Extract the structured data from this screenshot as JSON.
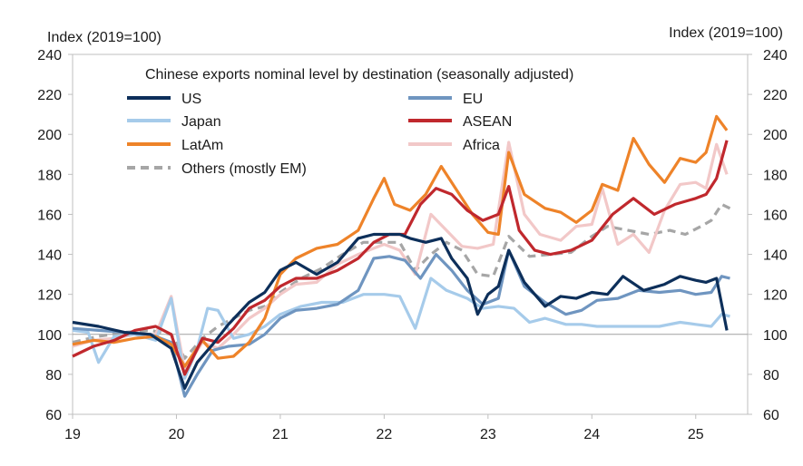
{
  "chart_data": {
    "type": "line",
    "title": "Chinese exports nominal level by destination (seasonally adjusted)",
    "ylabel_left": "Index (2019=100)",
    "ylabel_right": "Index (2019=100)",
    "ylim": [
      60,
      240
    ],
    "yticks": [
      60,
      80,
      100,
      120,
      140,
      160,
      180,
      200,
      220,
      240
    ],
    "xlim": [
      2019,
      2025.5
    ],
    "xticks": [
      {
        "value": 2019,
        "label": "19"
      },
      {
        "value": 2020,
        "label": "20"
      },
      {
        "value": 2021,
        "label": "21"
      },
      {
        "value": 2022,
        "label": "22"
      },
      {
        "value": 2023,
        "label": "23"
      },
      {
        "value": 2024,
        "label": "24"
      },
      {
        "value": 2025,
        "label": "25"
      }
    ],
    "reference_line": 100,
    "series": [
      {
        "name": "US",
        "color": "#0d2f5a",
        "dashed": false,
        "points": [
          [
            2019.0,
            106
          ],
          [
            2019.25,
            104
          ],
          [
            2019.5,
            101
          ],
          [
            2019.75,
            100
          ],
          [
            2019.95,
            93
          ],
          [
            2020.08,
            73
          ],
          [
            2020.2,
            86
          ],
          [
            2020.35,
            95
          ],
          [
            2020.5,
            105
          ],
          [
            2020.7,
            116
          ],
          [
            2020.85,
            121
          ],
          [
            2021.0,
            132
          ],
          [
            2021.15,
            136
          ],
          [
            2021.35,
            130
          ],
          [
            2021.55,
            136
          ],
          [
            2021.75,
            148
          ],
          [
            2021.9,
            150
          ],
          [
            2022.0,
            150
          ],
          [
            2022.15,
            150
          ],
          [
            2022.25,
            148
          ],
          [
            2022.4,
            146
          ],
          [
            2022.55,
            148
          ],
          [
            2022.65,
            138
          ],
          [
            2022.8,
            128
          ],
          [
            2022.9,
            110
          ],
          [
            2023.0,
            120
          ],
          [
            2023.1,
            124
          ],
          [
            2023.2,
            142
          ],
          [
            2023.35,
            126
          ],
          [
            2023.55,
            114
          ],
          [
            2023.7,
            119
          ],
          [
            2023.85,
            118
          ],
          [
            2024.0,
            121
          ],
          [
            2024.15,
            120
          ],
          [
            2024.3,
            129
          ],
          [
            2024.5,
            122
          ],
          [
            2024.7,
            125
          ],
          [
            2024.85,
            129
          ],
          [
            2025.0,
            127
          ],
          [
            2025.1,
            126
          ],
          [
            2025.2,
            128
          ],
          [
            2025.3,
            102
          ]
        ]
      },
      {
        "name": "EU",
        "color": "#6f95c0",
        "dashed": false,
        "points": [
          [
            2019.0,
            103
          ],
          [
            2019.25,
            102
          ],
          [
            2019.5,
            101
          ],
          [
            2019.75,
            100
          ],
          [
            2019.95,
            96
          ],
          [
            2020.08,
            69
          ],
          [
            2020.2,
            80
          ],
          [
            2020.35,
            92
          ],
          [
            2020.5,
            94
          ],
          [
            2020.7,
            95
          ],
          [
            2020.85,
            100
          ],
          [
            2021.0,
            108
          ],
          [
            2021.15,
            112
          ],
          [
            2021.35,
            113
          ],
          [
            2021.55,
            115
          ],
          [
            2021.75,
            122
          ],
          [
            2021.9,
            138
          ],
          [
            2022.05,
            139
          ],
          [
            2022.2,
            137
          ],
          [
            2022.35,
            128
          ],
          [
            2022.5,
            140
          ],
          [
            2022.65,
            132
          ],
          [
            2022.8,
            122
          ],
          [
            2022.95,
            115
          ],
          [
            2023.1,
            118
          ],
          [
            2023.2,
            142
          ],
          [
            2023.35,
            124
          ],
          [
            2023.55,
            116
          ],
          [
            2023.75,
            110
          ],
          [
            2023.9,
            112
          ],
          [
            2024.05,
            117
          ],
          [
            2024.25,
            118
          ],
          [
            2024.45,
            122
          ],
          [
            2024.65,
            121
          ],
          [
            2024.85,
            122
          ],
          [
            2025.0,
            120
          ],
          [
            2025.15,
            121
          ],
          [
            2025.25,
            129
          ],
          [
            2025.33,
            128
          ]
        ]
      },
      {
        "name": "Japan",
        "color": "#a6cbea",
        "dashed": false,
        "points": [
          [
            2019.0,
            102
          ],
          [
            2019.15,
            101
          ],
          [
            2019.25,
            86
          ],
          [
            2019.4,
            99
          ],
          [
            2019.6,
            100
          ],
          [
            2019.8,
            97
          ],
          [
            2019.95,
            118
          ],
          [
            2020.08,
            78
          ],
          [
            2020.2,
            93
          ],
          [
            2020.3,
            113
          ],
          [
            2020.4,
            112
          ],
          [
            2020.55,
            98
          ],
          [
            2020.7,
            100
          ],
          [
            2020.85,
            104
          ],
          [
            2021.0,
            110
          ],
          [
            2021.2,
            114
          ],
          [
            2021.4,
            116
          ],
          [
            2021.6,
            116
          ],
          [
            2021.8,
            120
          ],
          [
            2022.0,
            120
          ],
          [
            2022.15,
            119
          ],
          [
            2022.3,
            103
          ],
          [
            2022.45,
            128
          ],
          [
            2022.6,
            122
          ],
          [
            2022.8,
            118
          ],
          [
            2022.95,
            113
          ],
          [
            2023.1,
            114
          ],
          [
            2023.25,
            113
          ],
          [
            2023.4,
            106
          ],
          [
            2023.55,
            108
          ],
          [
            2023.75,
            105
          ],
          [
            2023.9,
            105
          ],
          [
            2024.05,
            104
          ],
          [
            2024.25,
            104
          ],
          [
            2024.45,
            104
          ],
          [
            2024.65,
            104
          ],
          [
            2024.85,
            106
          ],
          [
            2025.0,
            105
          ],
          [
            2025.15,
            104
          ],
          [
            2025.25,
            110
          ],
          [
            2025.33,
            109
          ]
        ]
      },
      {
        "name": "ASEAN",
        "color": "#c0282d",
        "dashed": false,
        "points": [
          [
            2019.0,
            89
          ],
          [
            2019.2,
            94
          ],
          [
            2019.4,
            97
          ],
          [
            2019.6,
            102
          ],
          [
            2019.8,
            104
          ],
          [
            2019.95,
            100
          ],
          [
            2020.08,
            80
          ],
          [
            2020.25,
            98
          ],
          [
            2020.4,
            96
          ],
          [
            2020.55,
            103
          ],
          [
            2020.7,
            113
          ],
          [
            2020.85,
            117
          ],
          [
            2021.0,
            124
          ],
          [
            2021.15,
            128
          ],
          [
            2021.35,
            128
          ],
          [
            2021.55,
            132
          ],
          [
            2021.75,
            138
          ],
          [
            2021.9,
            146
          ],
          [
            2022.05,
            150
          ],
          [
            2022.2,
            150
          ],
          [
            2022.35,
            165
          ],
          [
            2022.5,
            173
          ],
          [
            2022.65,
            170
          ],
          [
            2022.8,
            162
          ],
          [
            2022.95,
            157
          ],
          [
            2023.1,
            160
          ],
          [
            2023.2,
            174
          ],
          [
            2023.3,
            152
          ],
          [
            2023.45,
            142
          ],
          [
            2023.6,
            140
          ],
          [
            2023.8,
            142
          ],
          [
            2024.0,
            147
          ],
          [
            2024.2,
            160
          ],
          [
            2024.4,
            168
          ],
          [
            2024.6,
            160
          ],
          [
            2024.8,
            165
          ],
          [
            2025.0,
            168
          ],
          [
            2025.1,
            170
          ],
          [
            2025.2,
            178
          ],
          [
            2025.3,
            197
          ]
        ]
      },
      {
        "name": "LatAm",
        "color": "#ee8329",
        "dashed": false,
        "points": [
          [
            2019.0,
            95
          ],
          [
            2019.2,
            97
          ],
          [
            2019.4,
            96
          ],
          [
            2019.6,
            98
          ],
          [
            2019.8,
            99
          ],
          [
            2019.95,
            95
          ],
          [
            2020.08,
            84
          ],
          [
            2020.25,
            97
          ],
          [
            2020.4,
            88
          ],
          [
            2020.55,
            89
          ],
          [
            2020.7,
            96
          ],
          [
            2020.85,
            108
          ],
          [
            2021.0,
            130
          ],
          [
            2021.15,
            138
          ],
          [
            2021.35,
            143
          ],
          [
            2021.55,
            145
          ],
          [
            2021.75,
            152
          ],
          [
            2021.9,
            168
          ],
          [
            2022.0,
            178
          ],
          [
            2022.1,
            165
          ],
          [
            2022.25,
            162
          ],
          [
            2022.4,
            170
          ],
          [
            2022.55,
            184
          ],
          [
            2022.7,
            172
          ],
          [
            2022.85,
            160
          ],
          [
            2023.0,
            151
          ],
          [
            2023.1,
            150
          ],
          [
            2023.2,
            191
          ],
          [
            2023.35,
            170
          ],
          [
            2023.55,
            163
          ],
          [
            2023.7,
            161
          ],
          [
            2023.85,
            156
          ],
          [
            2024.0,
            162
          ],
          [
            2024.1,
            175
          ],
          [
            2024.25,
            172
          ],
          [
            2024.4,
            198
          ],
          [
            2024.55,
            185
          ],
          [
            2024.7,
            176
          ],
          [
            2024.85,
            188
          ],
          [
            2025.0,
            186
          ],
          [
            2025.1,
            191
          ],
          [
            2025.2,
            209
          ],
          [
            2025.3,
            202
          ]
        ]
      },
      {
        "name": "Africa",
        "color": "#f2c8c8",
        "dashed": false,
        "points": [
          [
            2019.0,
            94
          ],
          [
            2019.2,
            97
          ],
          [
            2019.4,
            98
          ],
          [
            2019.6,
            100
          ],
          [
            2019.8,
            100
          ],
          [
            2019.95,
            119
          ],
          [
            2020.08,
            82
          ],
          [
            2020.25,
            96
          ],
          [
            2020.4,
            93
          ],
          [
            2020.55,
            100
          ],
          [
            2020.7,
            108
          ],
          [
            2020.85,
            113
          ],
          [
            2021.0,
            120
          ],
          [
            2021.15,
            125
          ],
          [
            2021.35,
            126
          ],
          [
            2021.55,
            135
          ],
          [
            2021.75,
            140
          ],
          [
            2021.9,
            143
          ],
          [
            2022.0,
            145
          ],
          [
            2022.15,
            142
          ],
          [
            2022.3,
            130
          ],
          [
            2022.45,
            160
          ],
          [
            2022.6,
            152
          ],
          [
            2022.75,
            144
          ],
          [
            2022.9,
            143
          ],
          [
            2023.05,
            145
          ],
          [
            2023.2,
            196
          ],
          [
            2023.35,
            160
          ],
          [
            2023.5,
            150
          ],
          [
            2023.7,
            147
          ],
          [
            2023.85,
            154
          ],
          [
            2024.0,
            155
          ],
          [
            2024.1,
            173
          ],
          [
            2024.25,
            145
          ],
          [
            2024.4,
            150
          ],
          [
            2024.55,
            141
          ],
          [
            2024.7,
            162
          ],
          [
            2024.85,
            175
          ],
          [
            2025.0,
            176
          ],
          [
            2025.1,
            173
          ],
          [
            2025.2,
            195
          ],
          [
            2025.3,
            180
          ]
        ]
      },
      {
        "name": "Others (mostly EM)",
        "color": "#a6a6a6",
        "dashed": true,
        "points": [
          [
            2019.0,
            96
          ],
          [
            2019.25,
            99
          ],
          [
            2019.5,
            101
          ],
          [
            2019.75,
            102
          ],
          [
            2019.95,
            100
          ],
          [
            2020.08,
            88
          ],
          [
            2020.25,
            98
          ],
          [
            2020.4,
            104
          ],
          [
            2020.55,
            108
          ],
          [
            2020.7,
            112
          ],
          [
            2020.85,
            114
          ],
          [
            2021.0,
            121
          ],
          [
            2021.2,
            128
          ],
          [
            2021.4,
            133
          ],
          [
            2021.6,
            140
          ],
          [
            2021.8,
            146
          ],
          [
            2022.0,
            146
          ],
          [
            2022.15,
            146
          ],
          [
            2022.3,
            132
          ],
          [
            2022.45,
            140
          ],
          [
            2022.6,
            146
          ],
          [
            2022.75,
            142
          ],
          [
            2022.9,
            130
          ],
          [
            2023.05,
            129
          ],
          [
            2023.2,
            149
          ],
          [
            2023.4,
            139
          ],
          [
            2023.6,
            140
          ],
          [
            2023.8,
            141
          ],
          [
            2024.0,
            149
          ],
          [
            2024.15,
            154
          ],
          [
            2024.35,
            152
          ],
          [
            2024.55,
            150
          ],
          [
            2024.75,
            152
          ],
          [
            2024.9,
            150
          ],
          [
            2025.05,
            154
          ],
          [
            2025.15,
            157
          ],
          [
            2025.25,
            165
          ],
          [
            2025.33,
            163
          ]
        ]
      }
    ]
  }
}
